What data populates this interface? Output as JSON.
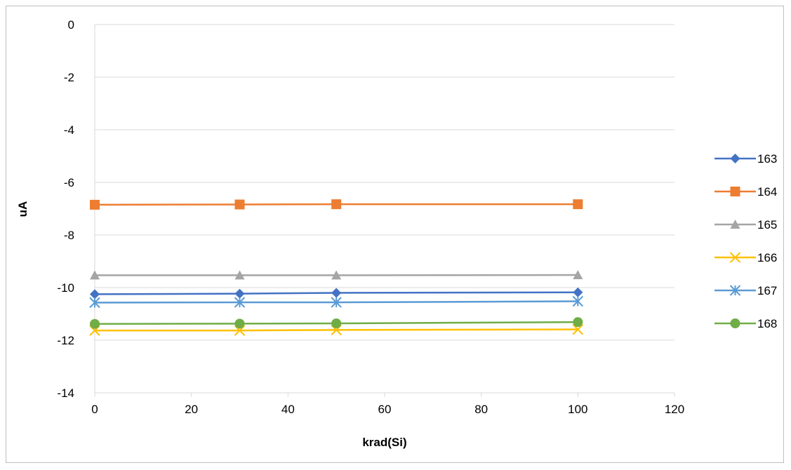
{
  "chart_data": {
    "type": "line",
    "xlabel": "krad(Si)",
    "ylabel": "uA",
    "xlim": [
      0,
      120
    ],
    "ylim": [
      -14,
      0
    ],
    "xticks": [
      0,
      20,
      40,
      60,
      80,
      100,
      120
    ],
    "yticks": [
      0,
      -2,
      -4,
      -6,
      -8,
      -10,
      -12,
      -14
    ],
    "grid": "horizontal",
    "legend_position": "right",
    "x": [
      0,
      30,
      50,
      100
    ],
    "series": [
      {
        "name": "163",
        "values": [
          -10.25,
          -10.23,
          -10.2,
          -10.18
        ],
        "color": "#4472C4",
        "marker": "diamond"
      },
      {
        "name": "164",
        "values": [
          -6.85,
          -6.84,
          -6.83,
          -6.83
        ],
        "color": "#ED7D31",
        "marker": "square"
      },
      {
        "name": "165",
        "values": [
          -9.53,
          -9.53,
          -9.53,
          -9.52
        ],
        "color": "#A5A5A5",
        "marker": "triangle"
      },
      {
        "name": "166",
        "values": [
          -11.63,
          -11.63,
          -11.61,
          -11.59
        ],
        "color": "#FFC000",
        "marker": "x"
      },
      {
        "name": "167",
        "values": [
          -10.57,
          -10.56,
          -10.56,
          -10.52
        ],
        "color": "#5B9BD5",
        "marker": "star"
      },
      {
        "name": "168",
        "values": [
          -11.38,
          -11.37,
          -11.36,
          -11.31
        ],
        "color": "#70AD47",
        "marker": "circle"
      }
    ]
  }
}
